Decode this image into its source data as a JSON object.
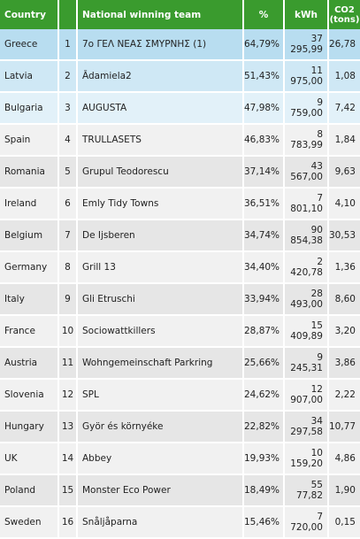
{
  "headers": {
    "country": "Country",
    "rank": "",
    "team": "National winning team",
    "percent": "%",
    "kwh": "kWh",
    "co2_line1": "CO2",
    "co2_line2": "(tons)"
  },
  "rows": [
    {
      "country": "Greece",
      "rank": "1",
      "team": "7ο ΓΕΛ ΝΕΑΣ ΣΜΥΡΝΗΣ (1)",
      "percent": "64,79%",
      "kwh": "37 295,99",
      "co2": "26,78"
    },
    {
      "country": "Latvia",
      "rank": "2",
      "team": "Ādamiela2",
      "percent": "51,43%",
      "kwh": "11 975,00",
      "co2": "1,08"
    },
    {
      "country": "Bulgaria",
      "rank": "3",
      "team": "AUGUSTA",
      "percent": "47,98%",
      "kwh": "9 759,00",
      "co2": "7,42"
    },
    {
      "country": "Spain",
      "rank": "4",
      "team": "TRULLASETS",
      "percent": "46,83%",
      "kwh": "8 783,99",
      "co2": "1,84"
    },
    {
      "country": "Romania",
      "rank": "5",
      "team": "Grupul Teodorescu",
      "percent": "37,14%",
      "kwh": "43 567,00",
      "co2": "9,63"
    },
    {
      "country": "Ireland",
      "rank": "6",
      "team": "Emly Tidy Towns",
      "percent": "36,51%",
      "kwh": "7 801,10",
      "co2": "4,10"
    },
    {
      "country": "Belgium",
      "rank": "7",
      "team": "De Ijsberen",
      "percent": "34,74%",
      "kwh": "90 854,38",
      "co2": "30,53"
    },
    {
      "country": "Germany",
      "rank": "8",
      "team": "Grill 13",
      "percent": "34,40%",
      "kwh": "2 420,78",
      "co2": "1,36"
    },
    {
      "country": "Italy",
      "rank": "9",
      "team": "Gli Etruschi",
      "percent": "33,94%",
      "kwh": "28 493,00",
      "co2": "8,60"
    },
    {
      "country": "France",
      "rank": "10",
      "team": "Sociowattkillers",
      "percent": "28,87%",
      "kwh": "15 409,89",
      "co2": "3,20"
    },
    {
      "country": "Austria",
      "rank": "11",
      "team": "Wohngemeinschaft Parkring",
      "percent": "25,66%",
      "kwh": "9 245,31",
      "co2": "3,86"
    },
    {
      "country": "Slovenia",
      "rank": "12",
      "team": "SPL",
      "percent": "24,62%",
      "kwh": "12 907,00",
      "co2": "2,22"
    },
    {
      "country": "Hungary",
      "rank": "13",
      "team": "Györ és környéke",
      "percent": "22,82%",
      "kwh": "34 297,58",
      "co2": "10,77"
    },
    {
      "country": "UK",
      "rank": "14",
      "team": "Abbey",
      "percent": "19,93%",
      "kwh": "10 159,20",
      "co2": "4,86"
    },
    {
      "country": "Poland",
      "rank": "15",
      "team": "Monster Eco Power",
      "percent": "18,49%",
      "kwh": "55 77,82",
      "co2": "1,90"
    },
    {
      "country": "Sweden",
      "rank": "16",
      "team": "Snåljåparna",
      "percent": "15,46%",
      "kwh": "7 720,00",
      "co2": "0,15"
    }
  ],
  "colors": {
    "header": "#3a9b2e",
    "highlight_rows": [
      "#b8ddf0",
      "#cfe8f5",
      "#e2f1f9"
    ],
    "row_alt": [
      "#f1f1f1",
      "#e6e6e6"
    ]
  }
}
